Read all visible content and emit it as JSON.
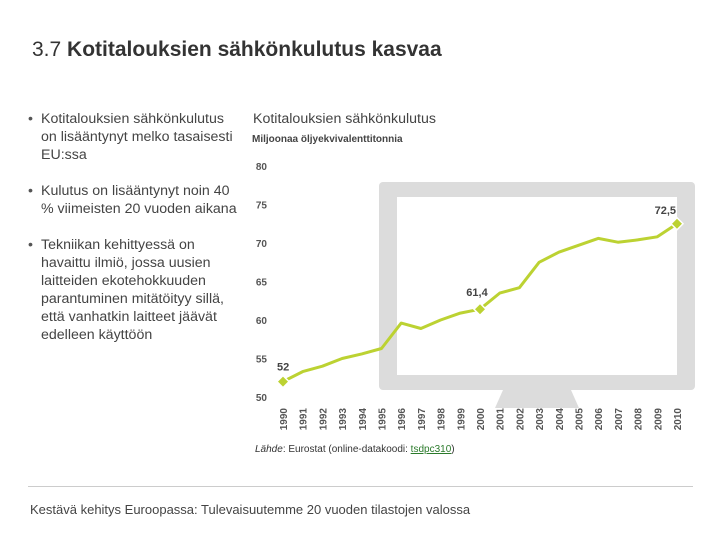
{
  "slide": {
    "number": "3.7",
    "title": "Kotitalouksien sähkönkulutus kasvaa"
  },
  "bullets": [
    "Kotitalouksien sähkönkulutus on lisääntynyt melko tasaisesti EU:ssa",
    "Kulutus on lisääntynyt noin 40 % viimeisten 20 vuoden aikana",
    "Tekniikan kehittyessä on havaittu ilmiö, jossa uusien laitteiden ekotehokkuuden parantuminen mitätöityy sillä, että vanhatkin laitteet jäävät edelleen käyttöön"
  ],
  "source": {
    "label": "Lähde",
    "text": ": Eurostat (online-datakoodi: ",
    "code": "tsdpc310",
    "close": ")"
  },
  "footer": {
    "text": "Kestävä kehitys Euroopassa: Tulevaisuutemme 20 vuoden tilastojen valossa"
  },
  "colors": {
    "line": "#bcd232",
    "marker_fill": "#bcd232",
    "marker_stroke": "#ffffff",
    "monitor": "#dcdcdc",
    "screen": "#ffffff"
  },
  "chart_data": {
    "type": "line",
    "title": "Kotitalouksien sähkönkulutus",
    "subtitle": "Miljoonaa öljyekvivalenttitonnia",
    "xlabel": "",
    "ylabel": "Miljoonaa öljyekvivalenttitonnia",
    "ylim": [
      50,
      80
    ],
    "yticks": [
      "50",
      "55",
      "60",
      "65",
      "70",
      "75",
      "80"
    ],
    "x": [
      "1990",
      "1991",
      "1992",
      "1993",
      "1994",
      "1995",
      "1996",
      "1997",
      "1998",
      "1999",
      "2000",
      "2001",
      "2002",
      "2003",
      "2004",
      "2005",
      "2006",
      "2007",
      "2008",
      "2009",
      "2010"
    ],
    "series": [
      {
        "name": "Kotitalouksien sähkönkulutus",
        "values": [
          52.0,
          53.3,
          54.0,
          55.0,
          55.6,
          56.3,
          59.6,
          58.9,
          60.0,
          60.9,
          61.4,
          63.5,
          64.2,
          67.5,
          68.8,
          69.7,
          70.6,
          70.1,
          70.4,
          70.8,
          72.5
        ]
      }
    ],
    "annotations": [
      {
        "x": "1990",
        "value": 52.0,
        "label": "52"
      },
      {
        "x": "2000",
        "value": 61.4,
        "label": "61,4"
      },
      {
        "x": "2010",
        "value": 72.5,
        "label": "72,5"
      }
    ],
    "grid": false,
    "legend": "none"
  }
}
